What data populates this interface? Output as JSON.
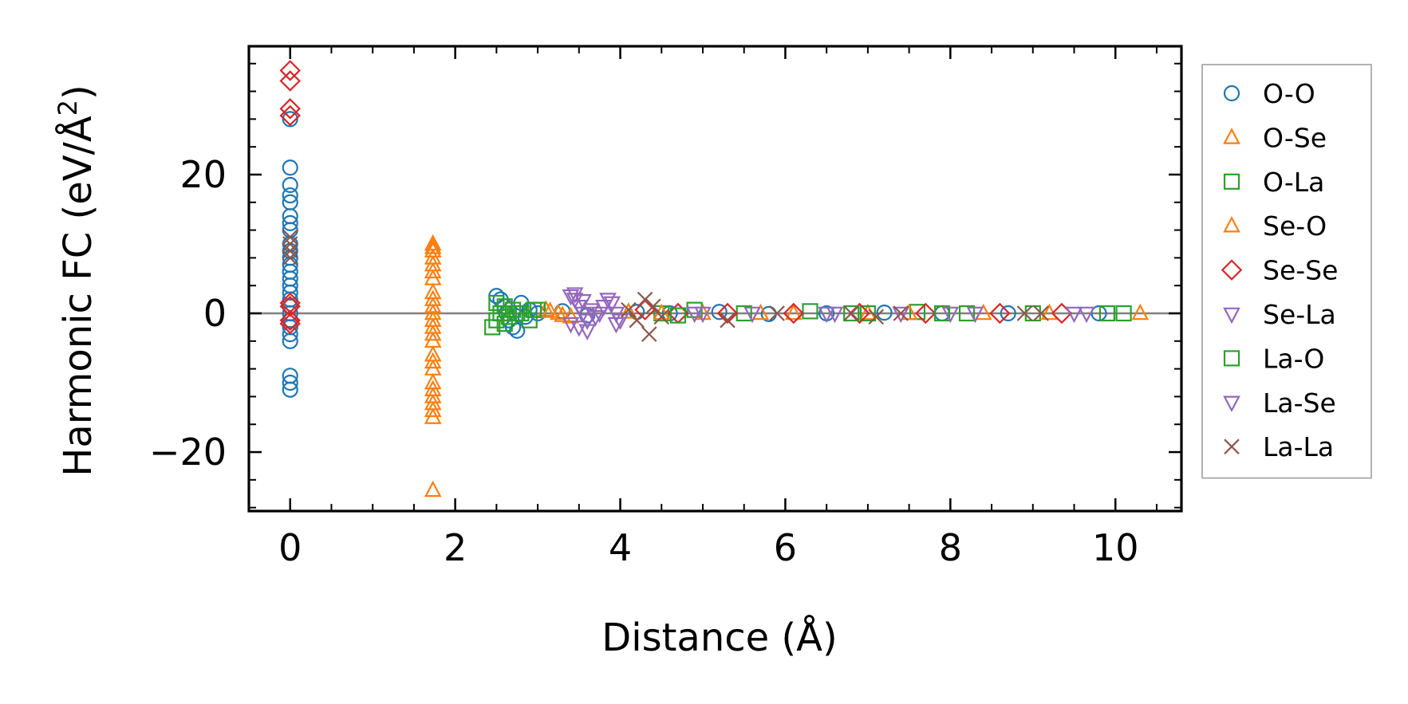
{
  "chart_data": {
    "type": "scatter",
    "title": "",
    "xlabel": "Distance (Å)",
    "ylabel_main": "Harmonic FC (eV/Å",
    "ylabel_sup": "2",
    "ylabel_close": ")",
    "xlim": [
      -0.5,
      10.8
    ],
    "ylim": [
      -28.5,
      38.5
    ],
    "x_ticks": [
      0,
      2,
      4,
      6,
      8,
      10
    ],
    "x_tick_labels": [
      "0",
      "2",
      "4",
      "6",
      "8",
      "10"
    ],
    "y_ticks": [
      -20,
      0,
      20
    ],
    "y_tick_labels": [
      "−20",
      "0",
      "20"
    ],
    "zero_line": true,
    "grid": false,
    "legend_position": "outside-right",
    "series": [
      {
        "name": "O-O",
        "marker": "circle",
        "color": "#1f77b4",
        "points": [
          [
            0,
            28
          ],
          [
            0,
            21
          ],
          [
            0,
            18.5
          ],
          [
            0,
            17
          ],
          [
            0,
            16
          ],
          [
            0,
            14
          ],
          [
            0,
            13
          ],
          [
            0,
            12
          ],
          [
            0,
            10
          ],
          [
            0,
            9
          ],
          [
            0,
            8
          ],
          [
            0,
            7
          ],
          [
            0,
            6
          ],
          [
            0,
            5
          ],
          [
            0,
            4
          ],
          [
            0,
            3
          ],
          [
            0,
            2
          ],
          [
            0,
            1
          ],
          [
            0,
            0
          ],
          [
            0,
            -1
          ],
          [
            0,
            -2
          ],
          [
            0,
            -3
          ],
          [
            0,
            -4
          ],
          [
            0,
            -9
          ],
          [
            0,
            -10
          ],
          [
            0,
            -11
          ],
          [
            2.5,
            2.5
          ],
          [
            2.55,
            2
          ],
          [
            2.6,
            1
          ],
          [
            2.62,
            0
          ],
          [
            2.65,
            -1
          ],
          [
            2.7,
            -2
          ],
          [
            2.75,
            -2.5
          ],
          [
            2.8,
            1.5
          ],
          [
            2.85,
            -0.5
          ],
          [
            2.9,
            0.5
          ],
          [
            3.0,
            0
          ],
          [
            3.3,
            0.3
          ],
          [
            3.6,
            -0.3
          ],
          [
            4.2,
            0.2
          ],
          [
            4.6,
            0
          ],
          [
            5.2,
            0.2
          ],
          [
            5.8,
            -0.1
          ],
          [
            6.5,
            0
          ],
          [
            7.2,
            0.1
          ],
          [
            7.9,
            0
          ],
          [
            8.7,
            0
          ],
          [
            9.8,
            0
          ]
        ]
      },
      {
        "name": "O-Se",
        "marker": "triangle-up",
        "color": "#ff7f0e",
        "points": [
          [
            1.73,
            10
          ],
          [
            1.73,
            9
          ],
          [
            1.73,
            8
          ],
          [
            1.73,
            7
          ],
          [
            1.73,
            5
          ],
          [
            1.73,
            3
          ],
          [
            1.73,
            1
          ],
          [
            1.73,
            0
          ],
          [
            1.73,
            -1
          ],
          [
            1.73,
            -2
          ],
          [
            1.73,
            -4
          ],
          [
            1.73,
            -6
          ],
          [
            1.73,
            -8
          ],
          [
            1.73,
            -10
          ],
          [
            1.73,
            -12
          ],
          [
            1.73,
            -13
          ],
          [
            1.73,
            -14
          ],
          [
            1.73,
            -15
          ],
          [
            1.73,
            -25.5
          ],
          [
            3.1,
            0.5
          ],
          [
            3.25,
            0
          ],
          [
            3.4,
            -0.5
          ],
          [
            4.1,
            0.2
          ],
          [
            5.0,
            0
          ],
          [
            6.1,
            0
          ],
          [
            7.0,
            0
          ],
          [
            8.4,
            0
          ],
          [
            10.3,
            0
          ]
        ]
      },
      {
        "name": "O-La",
        "marker": "square",
        "color": "#2ca02c",
        "points": [
          [
            2.45,
            -2
          ],
          [
            2.5,
            -1
          ],
          [
            2.55,
            0
          ],
          [
            2.6,
            1
          ],
          [
            2.65,
            -0.5
          ],
          [
            2.7,
            0.5
          ],
          [
            2.8,
            0
          ],
          [
            2.9,
            -1
          ],
          [
            3.0,
            0.5
          ],
          [
            4.5,
            0
          ],
          [
            4.9,
            0.5
          ],
          [
            5.5,
            0
          ],
          [
            6.3,
            0.3
          ],
          [
            7.0,
            0
          ],
          [
            7.6,
            0.2
          ],
          [
            8.2,
            0
          ],
          [
            9.0,
            0
          ],
          [
            10.1,
            0
          ]
        ]
      },
      {
        "name": "Se-O",
        "marker": "triangle-up",
        "color": "#ff7f0e",
        "points": [
          [
            1.73,
            9.5
          ],
          [
            1.73,
            6
          ],
          [
            1.73,
            2
          ],
          [
            1.73,
            -3
          ],
          [
            1.73,
            -7
          ],
          [
            1.73,
            -11
          ],
          [
            3.15,
            0.3
          ],
          [
            3.3,
            -0.3
          ],
          [
            4.5,
            0
          ],
          [
            5.7,
            0
          ],
          [
            7.5,
            0
          ],
          [
            9.2,
            0
          ]
        ]
      },
      {
        "name": "Se-Se",
        "marker": "diamond",
        "color": "#d62728",
        "points": [
          [
            0,
            35
          ],
          [
            0,
            33.5
          ],
          [
            0,
            29.5
          ],
          [
            0,
            28.5
          ],
          [
            0,
            1.5
          ],
          [
            0,
            1
          ],
          [
            0,
            -1
          ],
          [
            0,
            -1.5
          ],
          [
            4.3,
            0.5
          ],
          [
            4.7,
            0
          ],
          [
            5.3,
            0
          ],
          [
            6.1,
            0
          ],
          [
            6.9,
            0
          ],
          [
            7.7,
            0
          ],
          [
            8.6,
            0
          ],
          [
            9.35,
            0
          ]
        ]
      },
      {
        "name": "Se-La",
        "marker": "triangle-down",
        "color": "#9467bd",
        "points": [
          [
            3.4,
            2.5
          ],
          [
            3.45,
            2
          ],
          [
            3.5,
            1
          ],
          [
            3.55,
            0
          ],
          [
            3.6,
            -1
          ],
          [
            3.4,
            -1.5
          ],
          [
            3.5,
            -2
          ],
          [
            3.65,
            0.5
          ],
          [
            3.7,
            -0.5
          ],
          [
            3.8,
            1
          ],
          [
            3.9,
            1.5
          ],
          [
            3.95,
            0
          ],
          [
            4.0,
            -1
          ],
          [
            5.0,
            0
          ],
          [
            5.6,
            0
          ],
          [
            6.5,
            0
          ],
          [
            7.4,
            0
          ],
          [
            8.3,
            0
          ],
          [
            9.65,
            0
          ]
        ]
      },
      {
        "name": "La-O",
        "marker": "square",
        "color": "#2ca02c",
        "points": [
          [
            2.5,
            1.5
          ],
          [
            2.6,
            -1.5
          ],
          [
            2.75,
            0
          ],
          [
            2.95,
            0.5
          ],
          [
            4.7,
            -0.3
          ],
          [
            6.8,
            0
          ],
          [
            7.9,
            0
          ],
          [
            9.9,
            0
          ]
        ]
      },
      {
        "name": "La-Se",
        "marker": "triangle-down",
        "color": "#9467bd",
        "points": [
          [
            3.45,
            2.8
          ],
          [
            3.55,
            1.8
          ],
          [
            3.6,
            -2.5
          ],
          [
            3.75,
            0
          ],
          [
            3.85,
            2
          ],
          [
            3.95,
            -1.5
          ],
          [
            4.9,
            0
          ],
          [
            6.6,
            0
          ],
          [
            8.0,
            0
          ],
          [
            9.5,
            0
          ]
        ]
      },
      {
        "name": "La-La",
        "marker": "x",
        "color": "#8c564b",
        "points": [
          [
            0,
            11
          ],
          [
            0,
            10
          ],
          [
            0,
            9
          ],
          [
            0,
            8
          ],
          [
            4.1,
            0.5
          ],
          [
            4.2,
            -1
          ],
          [
            4.3,
            2
          ],
          [
            4.35,
            -3
          ],
          [
            4.4,
            1
          ],
          [
            4.5,
            -0.5
          ],
          [
            5.3,
            -1
          ],
          [
            5.9,
            0
          ],
          [
            6.8,
            0
          ],
          [
            7.1,
            -0.5
          ],
          [
            7.4,
            0
          ],
          [
            8.9,
            0
          ],
          [
            9.1,
            0
          ]
        ]
      }
    ]
  }
}
